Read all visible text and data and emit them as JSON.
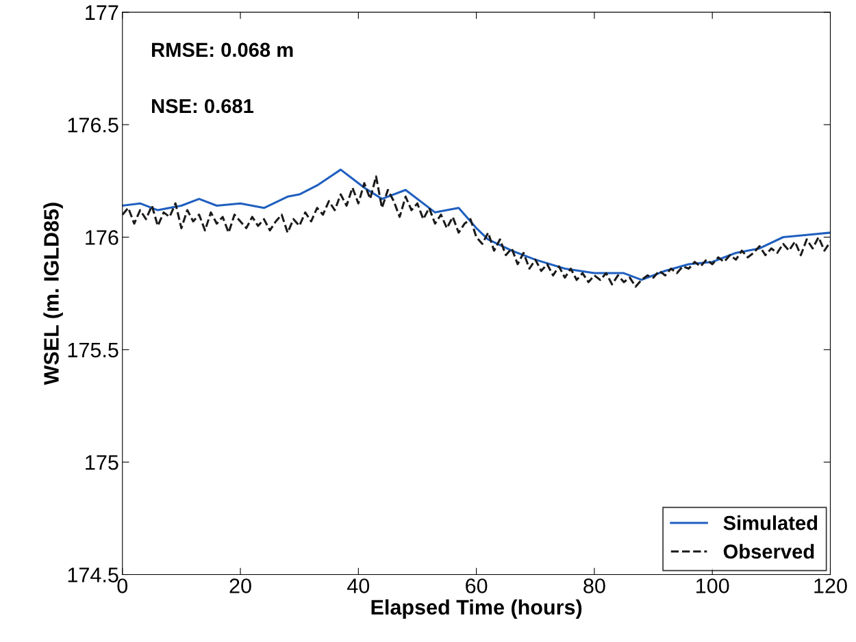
{
  "chart_data": {
    "type": "line",
    "xlabel": "Elapsed Time (hours)",
    "ylabel": "WSEL (m. IGLD85)",
    "xlim": [
      0,
      120
    ],
    "ylim": [
      174.5,
      177
    ],
    "xticks": [
      0,
      20,
      40,
      60,
      80,
      100,
      120
    ],
    "yticks": [
      174.5,
      175,
      175.5,
      176,
      176.5,
      177
    ],
    "grid": false,
    "legend": "bottom right",
    "annotations": [
      "RMSE: 0.068 m",
      "NSE: 0.681"
    ],
    "series": [
      {
        "name": "Simulated",
        "color": "#1f5fbf",
        "line_style": "solid",
        "x": [
          0,
          3,
          6,
          10,
          13,
          16,
          20,
          24,
          28,
          30,
          33,
          37,
          39,
          41,
          44,
          48,
          53,
          57,
          60,
          62,
          66,
          70,
          75,
          80,
          85,
          88,
          92,
          96,
          100,
          104,
          108,
          112,
          116,
          120
        ],
        "values": [
          176.14,
          176.15,
          176.12,
          176.14,
          176.17,
          176.14,
          176.15,
          176.13,
          176.18,
          176.19,
          176.23,
          176.3,
          176.26,
          176.22,
          176.17,
          176.21,
          176.11,
          176.13,
          176.04,
          175.99,
          175.94,
          175.9,
          175.86,
          175.84,
          175.84,
          175.81,
          175.85,
          175.88,
          175.89,
          175.93,
          175.95,
          176.0,
          176.01,
          176.02
        ]
      },
      {
        "name": "Observed",
        "color": "#1a1a1a",
        "line_style": "dashed",
        "x": [
          0,
          1,
          2,
          3,
          4,
          5,
          6,
          7,
          8,
          9,
          10,
          11,
          12,
          13,
          14,
          15,
          16,
          17,
          18,
          19,
          20,
          21,
          22,
          23,
          24,
          25,
          26,
          27,
          28,
          29,
          30,
          31,
          32,
          33,
          34,
          35,
          36,
          37,
          38,
          39,
          40,
          41,
          42,
          43,
          44,
          45,
          46,
          47,
          48,
          49,
          50,
          51,
          52,
          53,
          54,
          55,
          56,
          57,
          58,
          59,
          60,
          61,
          62,
          63,
          64,
          65,
          66,
          67,
          68,
          69,
          70,
          71,
          72,
          73,
          74,
          75,
          76,
          77,
          78,
          79,
          80,
          81,
          82,
          83,
          84,
          85,
          86,
          87,
          88,
          89,
          90,
          91,
          92,
          93,
          94,
          95,
          96,
          97,
          98,
          99,
          100,
          101,
          102,
          103,
          104,
          105,
          106,
          107,
          108,
          109,
          110,
          111,
          112,
          113,
          114,
          115,
          116,
          117,
          118,
          119,
          120
        ],
        "values": [
          176.1,
          176.13,
          176.06,
          176.12,
          176.08,
          176.14,
          176.05,
          176.11,
          176.09,
          176.15,
          176.04,
          176.12,
          176.07,
          176.1,
          176.03,
          176.11,
          176.06,
          176.09,
          176.02,
          176.1,
          176.07,
          176.04,
          176.09,
          176.05,
          176.08,
          176.03,
          176.07,
          176.1,
          176.02,
          176.08,
          176.05,
          176.11,
          176.07,
          176.13,
          176.1,
          176.16,
          176.12,
          176.19,
          176.14,
          176.22,
          176.15,
          176.24,
          176.17,
          176.27,
          176.13,
          176.21,
          176.16,
          176.09,
          176.18,
          176.12,
          176.15,
          176.08,
          176.13,
          176.06,
          176.1,
          176.04,
          176.09,
          176.02,
          176.06,
          176.08,
          176.0,
          175.97,
          176.02,
          175.94,
          175.99,
          175.92,
          175.95,
          175.88,
          175.93,
          175.86,
          175.9,
          175.85,
          175.88,
          175.83,
          175.87,
          175.82,
          175.86,
          175.81,
          175.84,
          175.8,
          175.83,
          175.81,
          175.84,
          175.79,
          175.83,
          175.8,
          175.82,
          175.78,
          175.81,
          175.83,
          175.82,
          175.85,
          175.83,
          175.86,
          175.84,
          175.87,
          175.86,
          175.89,
          175.87,
          175.9,
          175.88,
          175.91,
          175.89,
          175.92,
          175.9,
          175.94,
          175.91,
          175.93,
          175.96,
          175.92,
          175.95,
          175.93,
          175.97,
          175.94,
          175.98,
          175.92,
          175.99,
          175.95,
          176.0,
          175.94,
          175.98
        ]
      }
    ]
  }
}
